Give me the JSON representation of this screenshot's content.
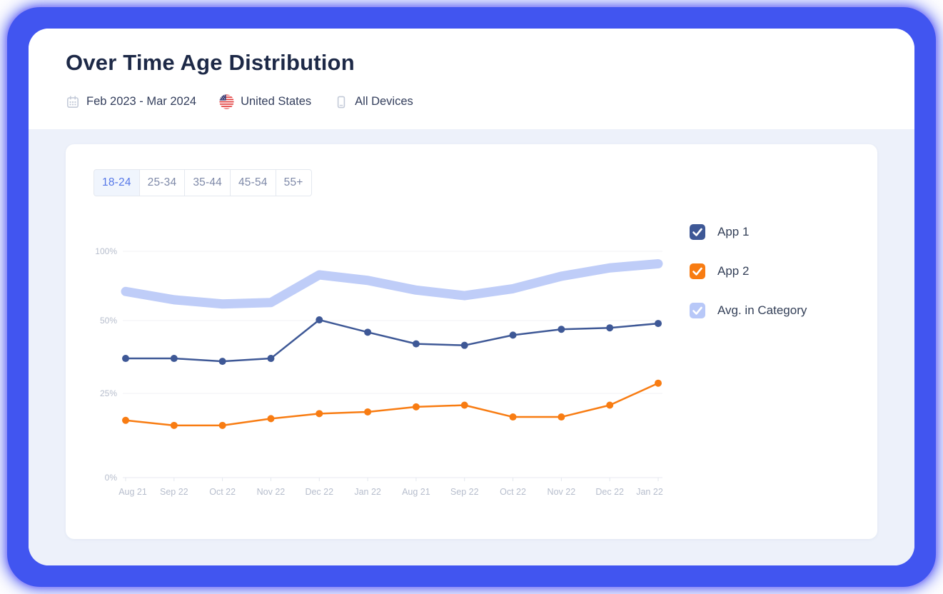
{
  "header": {
    "title": "Over Time Age Distribution",
    "meta": {
      "date_range": "Feb 2023 - Mar 2024",
      "country": "United States",
      "devices": "All Devices"
    }
  },
  "tabs": {
    "active": "18-24",
    "items": [
      {
        "label": "18-24"
      },
      {
        "label": "25-34"
      },
      {
        "label": "35-44"
      },
      {
        "label": "45-54"
      },
      {
        "label": "55+"
      }
    ]
  },
  "legend": {
    "items": [
      {
        "label": "App 1",
        "color": "#3e5896",
        "checked": true
      },
      {
        "label": "App 2",
        "color": "#f87c12",
        "checked": true
      },
      {
        "label": "Avg. in Category",
        "color": "#b8c8f8",
        "checked": true
      }
    ]
  },
  "chart_data": {
    "type": "line",
    "title": "Over Time Age Distribution",
    "xlabel": "",
    "ylabel": "",
    "grid": true,
    "legend_position": "right",
    "ylim": [
      0,
      100
    ],
    "y_ticks": [
      {
        "label": "100%",
        "value": 100
      },
      {
        "label": "50%",
        "value": 50
      },
      {
        "label": "25%",
        "value": 25
      },
      {
        "label": "0%",
        "value": 0
      }
    ],
    "y_axis_note": "non-linear axis: gridlines at 100/50/25/0 are evenly spaced",
    "categories": [
      "Aug 21",
      "Sep 22",
      "Oct 22",
      "Nov 22",
      "Dec 22",
      "Jan 22",
      "Aug 21",
      "Sep 22",
      "Oct 22",
      "Nov 22",
      "Dec 22",
      "Jan 22"
    ],
    "series": [
      {
        "name": "App 1",
        "color": "#3e5896",
        "style": "line-markers",
        "values": [
          37,
          37,
          36,
          37,
          50.5,
          46,
          42,
          41.5,
          45,
          47,
          47.5,
          49
        ]
      },
      {
        "name": "App 2",
        "color": "#f87c12",
        "style": "line-markers",
        "values": [
          17,
          15.5,
          15.5,
          17.5,
          19,
          19.5,
          21,
          21.5,
          18,
          18,
          21.5,
          28.5
        ]
      },
      {
        "name": "Avg. in Category",
        "color": "#bfcdf8",
        "style": "thick-line",
        "values": [
          71,
          65,
          62,
          63,
          83,
          79,
          72,
          68,
          73,
          82,
          88,
          91
        ]
      }
    ]
  }
}
